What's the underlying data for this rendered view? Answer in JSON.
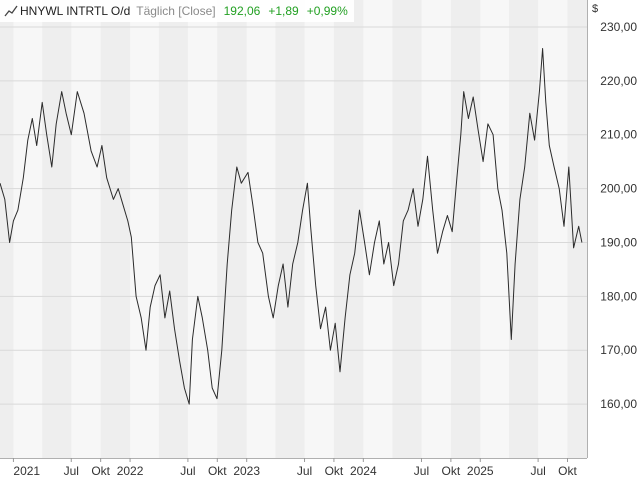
{
  "header": {
    "symbol": "HNYWL INTRTL O/d",
    "frequency": "Täglich [Close]",
    "last_value": "192,06",
    "change": "+1,89",
    "change_pct": "+0,99%"
  },
  "colors": {
    "line": "#2b2b2b",
    "up": "#22a022",
    "band_dark": "#eeeeee",
    "band_light": "#f7f7f7",
    "grid": "#d9d9d9"
  },
  "chart_data": {
    "type": "line",
    "currency_label": "$",
    "ylim": [
      150,
      235
    ],
    "yticks": [
      {
        "value": 160,
        "label": "160,00"
      },
      {
        "value": 170,
        "label": "170,00"
      },
      {
        "value": 180,
        "label": "180,00"
      },
      {
        "value": 190,
        "label": "190,00"
      },
      {
        "value": 200,
        "label": "200,00"
      },
      {
        "value": 210,
        "label": "210,00"
      },
      {
        "value": 220,
        "label": "220,00"
      },
      {
        "value": 230,
        "label": "230,00"
      }
    ],
    "xlim": [
      "2020-11-20",
      "2025-12-01"
    ],
    "xticks": [
      {
        "date": "2021-01-01",
        "label": "2021"
      },
      {
        "date": "2021-07-01",
        "label": "Jul"
      },
      {
        "date": "2021-10-01",
        "label": "Okt"
      },
      {
        "date": "2022-01-01",
        "label": "2022"
      },
      {
        "date": "2022-07-01",
        "label": "Jul"
      },
      {
        "date": "2022-10-01",
        "label": "Okt"
      },
      {
        "date": "2023-01-01",
        "label": "2023"
      },
      {
        "date": "2023-07-01",
        "label": "Jul"
      },
      {
        "date": "2023-10-01",
        "label": "Okt"
      },
      {
        "date": "2024-01-01",
        "label": "2024"
      },
      {
        "date": "2024-07-01",
        "label": "Jul"
      },
      {
        "date": "2024-10-01",
        "label": "Okt"
      },
      {
        "date": "2025-01-01",
        "label": "2025"
      },
      {
        "date": "2025-07-01",
        "label": "Jul"
      },
      {
        "date": "2025-10-01",
        "label": "Okt"
      }
    ],
    "series": [
      {
        "points": [
          [
            "2020-11-20",
            201
          ],
          [
            "2020-12-05",
            198
          ],
          [
            "2020-12-20",
            190
          ],
          [
            "2021-01-01",
            194
          ],
          [
            "2021-01-15",
            196
          ],
          [
            "2021-02-01",
            202
          ],
          [
            "2021-02-15",
            209
          ],
          [
            "2021-03-01",
            213
          ],
          [
            "2021-03-15",
            208
          ],
          [
            "2021-04-01",
            216
          ],
          [
            "2021-04-15",
            210
          ],
          [
            "2021-05-01",
            204
          ],
          [
            "2021-05-15",
            212
          ],
          [
            "2021-06-01",
            218
          ],
          [
            "2021-06-15",
            214
          ],
          [
            "2021-07-01",
            210
          ],
          [
            "2021-07-20",
            218
          ],
          [
            "2021-08-10",
            214
          ],
          [
            "2021-09-01",
            207
          ],
          [
            "2021-09-20",
            204
          ],
          [
            "2021-10-05",
            208
          ],
          [
            "2021-10-20",
            202
          ],
          [
            "2021-11-10",
            198
          ],
          [
            "2021-11-25",
            200
          ],
          [
            "2021-12-10",
            197
          ],
          [
            "2021-12-25",
            194
          ],
          [
            "2022-01-05",
            191
          ],
          [
            "2022-01-20",
            180
          ],
          [
            "2022-02-05",
            176
          ],
          [
            "2022-02-20",
            170
          ],
          [
            "2022-03-05",
            178
          ],
          [
            "2022-03-20",
            182
          ],
          [
            "2022-04-05",
            184
          ],
          [
            "2022-04-20",
            176
          ],
          [
            "2022-05-05",
            181
          ],
          [
            "2022-05-20",
            174
          ],
          [
            "2022-06-05",
            168
          ],
          [
            "2022-06-20",
            163
          ],
          [
            "2022-07-05",
            160
          ],
          [
            "2022-07-15",
            172
          ],
          [
            "2022-08-01",
            180
          ],
          [
            "2022-08-15",
            176
          ],
          [
            "2022-09-01",
            170
          ],
          [
            "2022-09-15",
            163
          ],
          [
            "2022-09-30",
            161
          ],
          [
            "2022-10-15",
            170
          ],
          [
            "2022-11-01",
            186
          ],
          [
            "2022-11-15",
            196
          ],
          [
            "2022-12-01",
            204
          ],
          [
            "2022-12-15",
            201
          ],
          [
            "2023-01-05",
            203
          ],
          [
            "2023-01-20",
            197
          ],
          [
            "2023-02-05",
            190
          ],
          [
            "2023-02-20",
            188
          ],
          [
            "2023-03-10",
            180
          ],
          [
            "2023-03-25",
            176
          ],
          [
            "2023-04-10",
            182
          ],
          [
            "2023-04-25",
            186
          ],
          [
            "2023-05-10",
            178
          ],
          [
            "2023-05-25",
            186
          ],
          [
            "2023-06-10",
            190
          ],
          [
            "2023-06-25",
            196
          ],
          [
            "2023-07-10",
            201
          ],
          [
            "2023-07-20",
            193
          ],
          [
            "2023-08-05",
            182
          ],
          [
            "2023-08-20",
            174
          ],
          [
            "2023-09-05",
            178
          ],
          [
            "2023-09-20",
            170
          ],
          [
            "2023-10-05",
            175
          ],
          [
            "2023-10-20",
            166
          ],
          [
            "2023-11-05",
            176
          ],
          [
            "2023-11-20",
            184
          ],
          [
            "2023-12-05",
            188
          ],
          [
            "2023-12-20",
            196
          ],
          [
            "2024-01-05",
            190
          ],
          [
            "2024-01-20",
            184
          ],
          [
            "2024-02-05",
            190
          ],
          [
            "2024-02-20",
            194
          ],
          [
            "2024-03-05",
            186
          ],
          [
            "2024-03-20",
            190
          ],
          [
            "2024-04-05",
            182
          ],
          [
            "2024-04-20",
            186
          ],
          [
            "2024-05-05",
            194
          ],
          [
            "2024-05-20",
            196
          ],
          [
            "2024-06-05",
            200
          ],
          [
            "2024-06-20",
            193
          ],
          [
            "2024-07-05",
            198
          ],
          [
            "2024-07-20",
            206
          ],
          [
            "2024-08-05",
            196
          ],
          [
            "2024-08-20",
            188
          ],
          [
            "2024-09-05",
            192
          ],
          [
            "2024-09-20",
            195
          ],
          [
            "2024-10-05",
            192
          ],
          [
            "2024-10-20",
            202
          ],
          [
            "2024-11-01",
            210
          ],
          [
            "2024-11-10",
            218
          ],
          [
            "2024-11-25",
            213
          ],
          [
            "2024-12-10",
            217
          ],
          [
            "2024-12-25",
            211
          ],
          [
            "2025-01-10",
            205
          ],
          [
            "2025-01-25",
            212
          ],
          [
            "2025-02-10",
            210
          ],
          [
            "2025-02-25",
            200
          ],
          [
            "2025-03-10",
            196
          ],
          [
            "2025-03-25",
            188
          ],
          [
            "2025-04-08",
            172
          ],
          [
            "2025-04-20",
            186
          ],
          [
            "2025-05-05",
            198
          ],
          [
            "2025-05-20",
            204
          ],
          [
            "2025-06-05",
            214
          ],
          [
            "2025-06-20",
            209
          ],
          [
            "2025-07-05",
            218
          ],
          [
            "2025-07-15",
            226
          ],
          [
            "2025-07-25",
            216
          ],
          [
            "2025-08-05",
            208
          ],
          [
            "2025-08-20",
            204
          ],
          [
            "2025-09-05",
            200
          ],
          [
            "2025-09-20",
            193
          ],
          [
            "2025-10-05",
            204
          ],
          [
            "2025-10-20",
            189
          ],
          [
            "2025-11-05",
            193
          ],
          [
            "2025-11-15",
            190
          ]
        ]
      }
    ]
  }
}
